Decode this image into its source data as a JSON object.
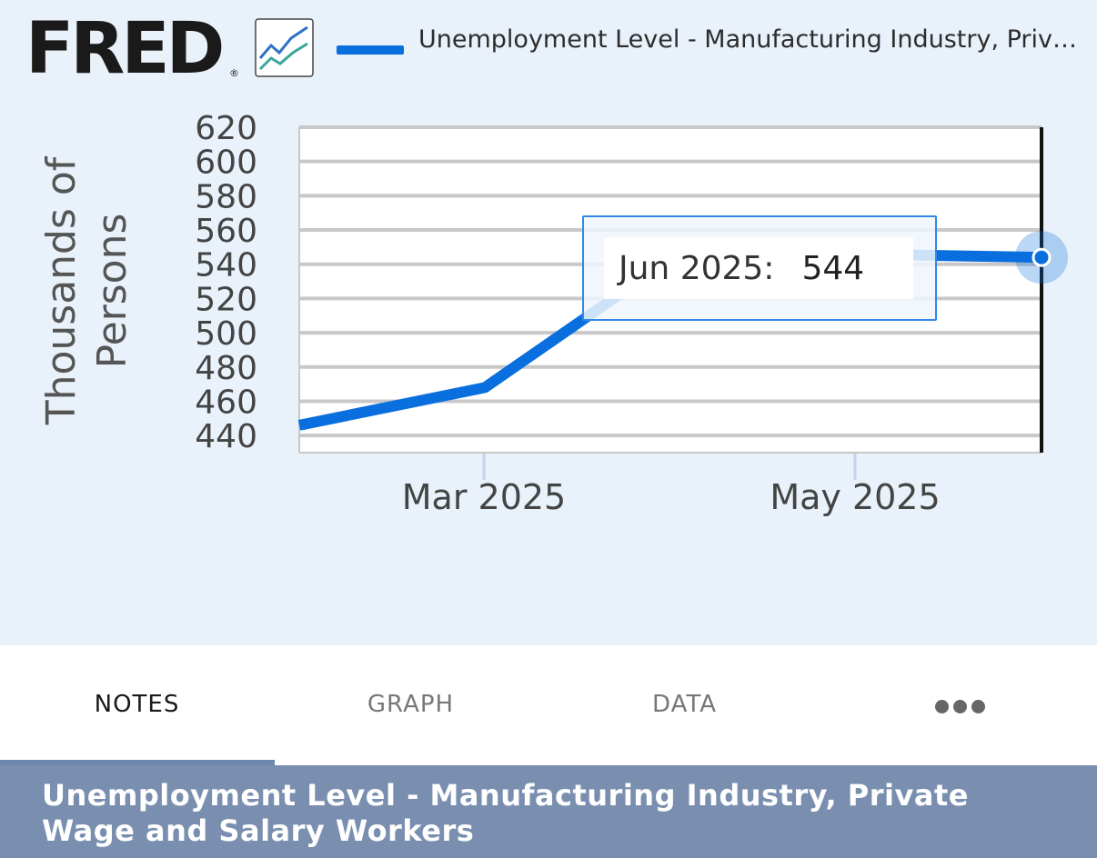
{
  "header": {
    "logo_text": "FRED",
    "logo_registered": "®",
    "logo_icon": "line-chart-icon",
    "legend_label": "Unemployment Level - Manufacturing Industry, Private Wage and Salary Workers"
  },
  "chart_data": {
    "type": "line",
    "ylabel": "Thousands of Persons",
    "xlabel": "",
    "yticks": [
      620,
      600,
      580,
      560,
      540,
      520,
      500,
      480,
      460,
      440
    ],
    "ylim": [
      430,
      620
    ],
    "xticks": [
      "Mar 2025",
      "May 2025"
    ],
    "grid": true,
    "legend": "top",
    "series": [
      {
        "name": "Unemployment Level - Manufatcuring Industry, Private Wage and Salary Workers",
        "color": "#0a6fde",
        "x": [
          "Feb 2025",
          "Mar 2025",
          "Apr 2025",
          "May 2025",
          "Jun 2025"
        ],
        "values": [
          446,
          468,
          543,
          546,
          544
        ]
      }
    ],
    "tooltip": {
      "date": "Jun 2025:",
      "value": "544"
    }
  },
  "tabs": [
    {
      "label": "NOTES",
      "active": true
    },
    {
      "label": "GRAPH",
      "active": false
    },
    {
      "label": "DATA",
      "active": false
    }
  ],
  "more_icon": "more-horizontal-icon",
  "footer": {
    "title": "Unemployment Level - Manufacturing Industry, Private Wage and Salary Workers"
  },
  "colors": {
    "chart_background": "#e9f1fa",
    "series": "#0a6fde",
    "footer_background": "#7a8fb0",
    "tab_indicator": "#6c86ad"
  }
}
